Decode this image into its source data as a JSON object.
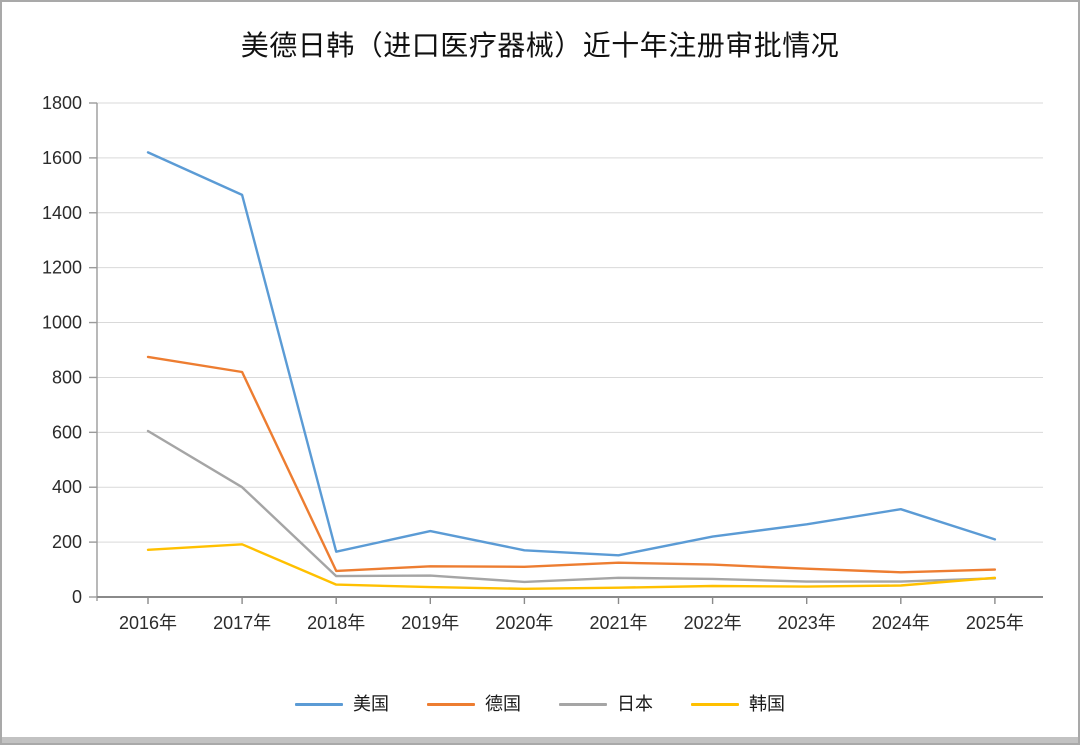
{
  "chart_data": {
    "type": "line",
    "title": "美德日韩（进口医疗器械）近十年注册审批情况",
    "categories": [
      "2016年",
      "2017年",
      "2018年",
      "2019年",
      "2020年",
      "2021年",
      "2022年",
      "2023年",
      "2024年",
      "2025年"
    ],
    "series": [
      {
        "name": "美国",
        "color": "#5B9BD5",
        "values": [
          1620,
          1465,
          165,
          240,
          170,
          152,
          220,
          265,
          320,
          210
        ]
      },
      {
        "name": "德国",
        "color": "#ED7D31",
        "values": [
          875,
          820,
          95,
          112,
          110,
          125,
          118,
          103,
          90,
          100
        ]
      },
      {
        "name": "日本",
        "color": "#A5A5A5",
        "values": [
          605,
          400,
          76,
          78,
          55,
          70,
          66,
          56,
          56,
          68
        ]
      },
      {
        "name": "韩国",
        "color": "#FFC000",
        "values": [
          172,
          192,
          45,
          36,
          30,
          34,
          40,
          38,
          42,
          70
        ]
      }
    ],
    "xlabel": "",
    "ylabel": "",
    "ylim": [
      0,
      1800
    ],
    "ytick_interval": 200,
    "yticks": [
      "0",
      "200",
      "400",
      "600",
      "800",
      "1000",
      "1200",
      "1400",
      "1600",
      "1800"
    ],
    "grid": true,
    "legend_position": "bottom",
    "colors": {
      "gridline": "#d9d9d9",
      "axis_line": "#8a8a8a",
      "y_axis_line": "#9b9b9b",
      "tick_label": "#2b2b2b",
      "title": "#111111",
      "background": "#ffffff",
      "frame_border": "#a9a9a9",
      "bottom_bar": "#c2c2c2"
    }
  }
}
